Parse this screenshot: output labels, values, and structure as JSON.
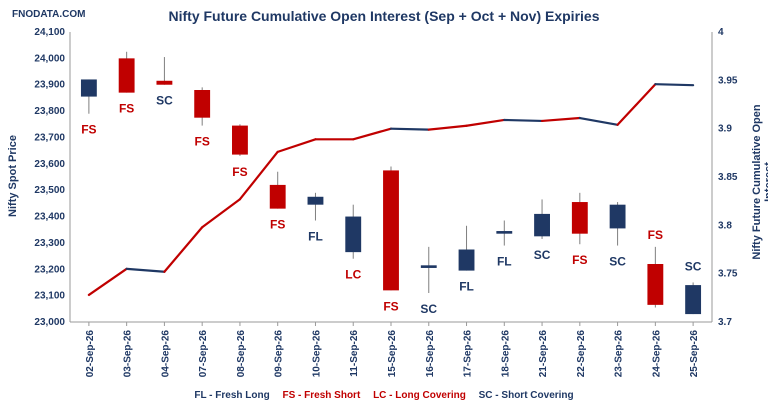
{
  "site": "FNODATA.COM",
  "chart_data": {
    "type": "candlestick+line",
    "title": "Nifty Future Cumulative Open Interest (Sep + Oct + Nov) Expiries",
    "ylabel_left": "Nifty Spot Price",
    "ylabel_right": "Nifty Future Cumulative Open Interest",
    "ylim_left": [
      23000,
      24100
    ],
    "ylim_right": [
      3.7,
      4.0
    ],
    "yticks_left": [
      "23,000",
      "23,100",
      "23,200",
      "23,300",
      "23,400",
      "23,500",
      "23,600",
      "23,700",
      "23,800",
      "23,900",
      "24,000",
      "24,100"
    ],
    "yticks_right": [
      "3.7",
      "3.75",
      "3.8",
      "3.85",
      "3.9",
      "3.95",
      "4"
    ],
    "categories": [
      "02-Sep-26",
      "03-Sep-26",
      "04-Sep-26",
      "07-Sep-26",
      "08-Sep-26",
      "09-Sep-26",
      "10-Sep-26",
      "11-Sep-26",
      "15-Sep-26",
      "16-Sep-26",
      "17-Sep-26",
      "18-Sep-26",
      "21-Sep-26",
      "22-Sep-26",
      "23-Sep-26",
      "24-Sep-26",
      "25-Sep-26"
    ],
    "candles": [
      {
        "open": 23920,
        "close": 23855,
        "high": 23920,
        "low": 23790,
        "color": "blue"
      },
      {
        "open": 23870,
        "close": 24000,
        "high": 24025,
        "low": 23870,
        "color": "red"
      },
      {
        "open": 23915,
        "close": 23900,
        "high": 24005,
        "low": 23900,
        "color": "red"
      },
      {
        "open": 23880,
        "close": 23775,
        "high": 23890,
        "low": 23745,
        "color": "red"
      },
      {
        "open": 23745,
        "close": 23635,
        "high": 23750,
        "low": 23630,
        "color": "red"
      },
      {
        "open": 23520,
        "close": 23430,
        "high": 23570,
        "low": 23430,
        "color": "red"
      },
      {
        "open": 23445,
        "close": 23475,
        "high": 23490,
        "low": 23385,
        "color": "blue"
      },
      {
        "open": 23265,
        "close": 23400,
        "high": 23445,
        "low": 23240,
        "color": "blue"
      },
      {
        "open": 23575,
        "close": 23120,
        "high": 23590,
        "low": 23120,
        "color": "red"
      },
      {
        "open": 23205,
        "close": 23215,
        "high": 23285,
        "low": 23110,
        "color": "blue"
      },
      {
        "open": 23195,
        "close": 23275,
        "high": 23365,
        "low": 23195,
        "color": "blue"
      },
      {
        "open": 23335,
        "close": 23345,
        "high": 23385,
        "low": 23290,
        "color": "blue"
      },
      {
        "open": 23325,
        "close": 23410,
        "high": 23465,
        "low": 23315,
        "color": "blue"
      },
      {
        "open": 23455,
        "close": 23335,
        "high": 23490,
        "low": 23295,
        "color": "red"
      },
      {
        "open": 23355,
        "close": 23445,
        "high": 23455,
        "low": 23290,
        "color": "blue"
      },
      {
        "open": 23220,
        "close": 23065,
        "high": 23285,
        "low": 23055,
        "color": "red"
      },
      {
        "open": 23030,
        "close": 23140,
        "high": 23150,
        "low": 23030,
        "color": "blue"
      }
    ],
    "annotations": [
      "FS",
      "FS",
      "SC",
      "FS",
      "FS",
      "FS",
      "FL",
      "LC",
      "FS",
      "SC",
      "FL",
      "FL",
      "SC",
      "FS",
      "SC",
      "FS",
      "SC"
    ],
    "open_interest": [
      3.728,
      3.755,
      3.752,
      3.798,
      3.827,
      3.876,
      3.889,
      3.889,
      3.9,
      3.899,
      3.903,
      3.909,
      3.908,
      3.911,
      3.904,
      3.946,
      3.945
    ],
    "legend": [
      "FL - Fresh Long",
      "FS - Fresh Short",
      "LC - Long Covering",
      "SC - Short Covering"
    ]
  },
  "colors": {
    "blue": "#1f3864",
    "red": "#c00000",
    "axis": "#9a9a9a"
  }
}
